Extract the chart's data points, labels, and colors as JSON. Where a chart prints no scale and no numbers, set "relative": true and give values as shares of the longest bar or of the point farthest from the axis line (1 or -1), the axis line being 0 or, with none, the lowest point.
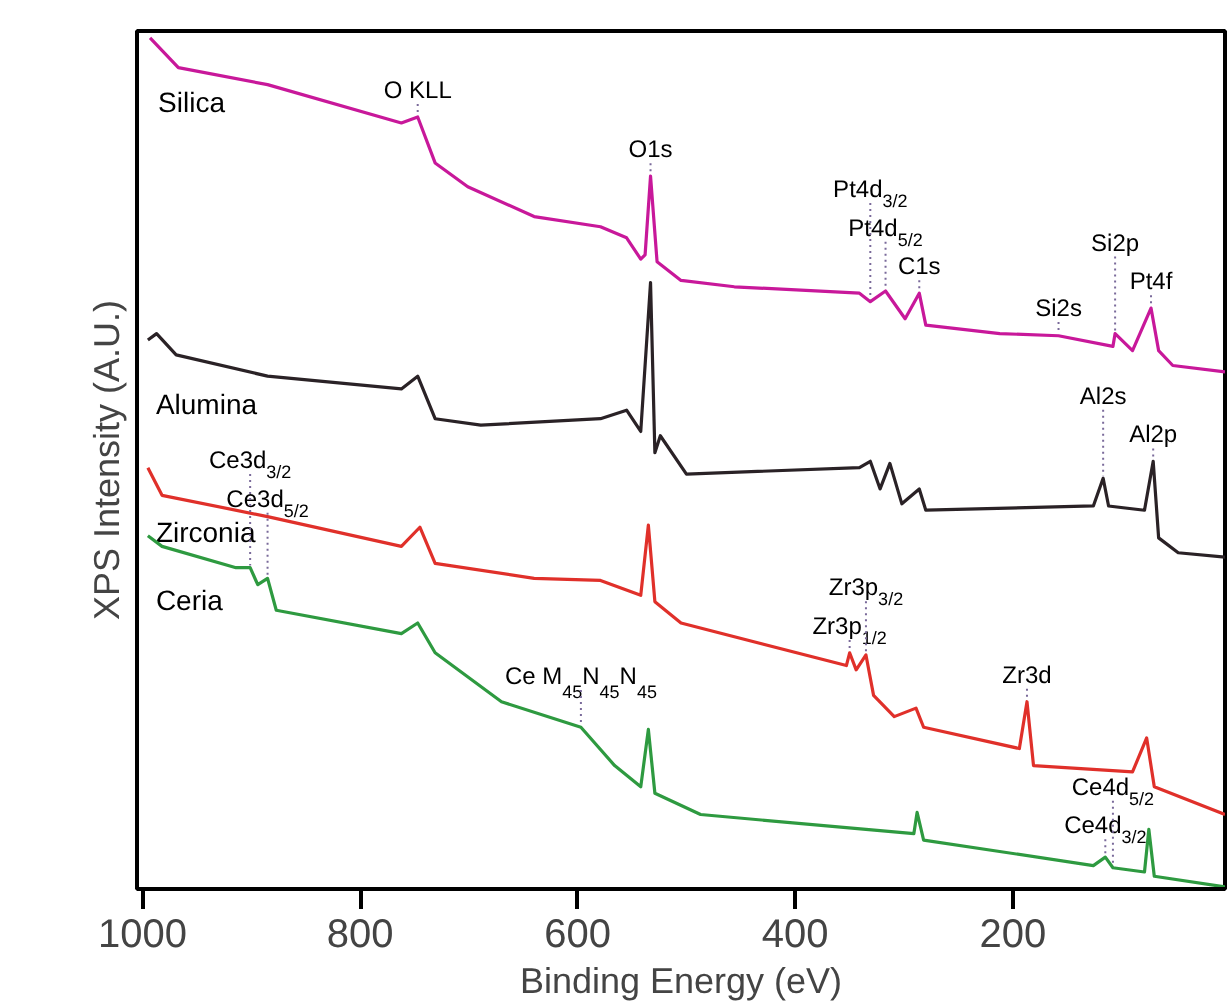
{
  "chart_data": {
    "type": "line",
    "relative": true,
    "xlabel": "Binding Energy (eV)",
    "ylabel": "XPS Intensity (A.U.)",
    "xlim": [
      1005,
      5
    ],
    "xticks": [
      1000,
      800,
      600,
      400,
      200
    ],
    "grid": false,
    "marker": "none",
    "line_style": "solid",
    "series": [
      {
        "name": "Silica",
        "color": "#c8189a",
        "x": [
          993,
          967,
          885,
          762,
          747,
          731,
          701,
          640,
          579,
          555,
          542,
          538,
          533,
          527,
          505,
          456,
          341,
          331,
          317,
          299,
          286,
          280,
          212,
          158,
          108,
          106,
          90,
          73,
          66,
          53,
          5
        ],
        "values": [
          1.0,
          0.965,
          0.945,
          0.9,
          0.907,
          0.853,
          0.825,
          0.79,
          0.778,
          0.765,
          0.74,
          0.745,
          0.8375,
          0.737,
          0.715,
          0.7075,
          0.7,
          0.69,
          0.7025,
          0.67,
          0.7,
          0.6625,
          0.6525,
          0.65,
          0.6375,
          0.6525,
          0.6325,
          0.6825,
          0.6325,
          0.615,
          0.6075
        ]
      },
      {
        "name": "Alumina",
        "color": "#2a2226",
        "x": [
          995,
          987,
          969,
          885,
          762,
          747,
          731,
          689,
          579,
          555,
          542,
          533,
          529,
          524,
          500,
          341,
          331,
          322,
          313,
          302,
          286,
          280,
          126,
          117,
          112,
          79,
          71,
          66,
          48,
          5
        ],
        "values": [
          0.645,
          0.6525,
          0.6275,
          0.6025,
          0.5875,
          0.6025,
          0.5525,
          0.545,
          0.5525,
          0.5625,
          0.5375,
          0.7125,
          0.5125,
          0.5325,
          0.4875,
          0.495,
          0.5025,
          0.47,
          0.5,
          0.4525,
          0.47,
          0.445,
          0.45,
          0.4825,
          0.45,
          0.445,
          0.5025,
          0.4125,
          0.395,
          0.39
        ]
      },
      {
        "name": "Zirconia",
        "color": "#e0302a",
        "x": [
          995,
          982,
          885,
          762,
          745,
          731,
          640,
          579,
          542,
          535,
          529,
          505,
          353,
          350,
          344,
          335,
          328,
          309,
          289,
          282,
          194,
          187,
          181,
          90,
          77,
          70,
          5
        ],
        "values": [
          0.495,
          0.4625,
          0.4375,
          0.4025,
          0.425,
          0.3825,
          0.365,
          0.3625,
          0.345,
          0.4275,
          0.3375,
          0.3125,
          0.2625,
          0.2775,
          0.2575,
          0.275,
          0.2275,
          0.2025,
          0.2125,
          0.19,
          0.165,
          0.22,
          0.145,
          0.1375,
          0.1775,
          0.12,
          0.0875
        ]
      },
      {
        "name": "Ceria",
        "color": "#2e9a40",
        "x": [
          995,
          982,
          914,
          901,
          894,
          885,
          877,
          762,
          747,
          731,
          670,
          597,
          566,
          542,
          535,
          529,
          487,
          335,
          291,
          288,
          282,
          126,
          115,
          108,
          79,
          75,
          70,
          5
        ],
        "values": [
          0.415,
          0.4025,
          0.3775,
          0.3775,
          0.3575,
          0.365,
          0.3275,
          0.3,
          0.3125,
          0.2775,
          0.22,
          0.19,
          0.145,
          0.12,
          0.1875,
          0.1125,
          0.0875,
          0.07,
          0.065,
          0.09,
          0.0575,
          0.0275,
          0.0375,
          0.025,
          0.02,
          0.07,
          0.015,
          0.0025
        ]
      }
    ],
    "annotations": [
      {
        "text": "O KLL",
        "x": 747,
        "y": 0.907
      },
      {
        "text": "O1s",
        "x": 533,
        "y": 0.8375
      },
      {
        "text": "C1s",
        "x": 286,
        "y": 0.7
      },
      {
        "text": "Pt4d$_{5/2}$",
        "x": 317,
        "y": 0.7025
      },
      {
        "text": "Pt4d$_{3/2}$",
        "x": 331,
        "y": 0.69
      },
      {
        "text": "Si2s",
        "x": 158,
        "y": 0.65
      },
      {
        "text": "Pt4f",
        "x": 73,
        "y": 0.6825
      },
      {
        "text": "Si2p",
        "x": 106,
        "y": 0.6525
      },
      {
        "text": "Al2p",
        "x": 71,
        "y": 0.5025
      },
      {
        "text": "Al2s",
        "x": 117,
        "y": 0.4825
      },
      {
        "text": "Zr3d",
        "x": 187,
        "y": 0.22
      },
      {
        "text": "Zr3p$_{1/2}$",
        "x": 350,
        "y": 0.2775
      },
      {
        "text": "Zr3p$_{3/2}$",
        "x": 335,
        "y": 0.275
      },
      {
        "text": "Ce3d$_{5/2}$",
        "x": 885,
        "y": 0.365
      },
      {
        "text": "Ce3d$_{3/2}$",
        "x": 901,
        "y": 0.3775
      },
      {
        "text": "Ce M$_{45}$N$_{45}$N$_{45}$",
        "x": 597,
        "y": 0.19
      },
      {
        "text": "Ce4d$_{3/2}$",
        "x": 115,
        "y": 0.0375
      },
      {
        "text": "Ce4d$_{5/2}$",
        "x": 108,
        "y": 0.025
      }
    ]
  }
}
